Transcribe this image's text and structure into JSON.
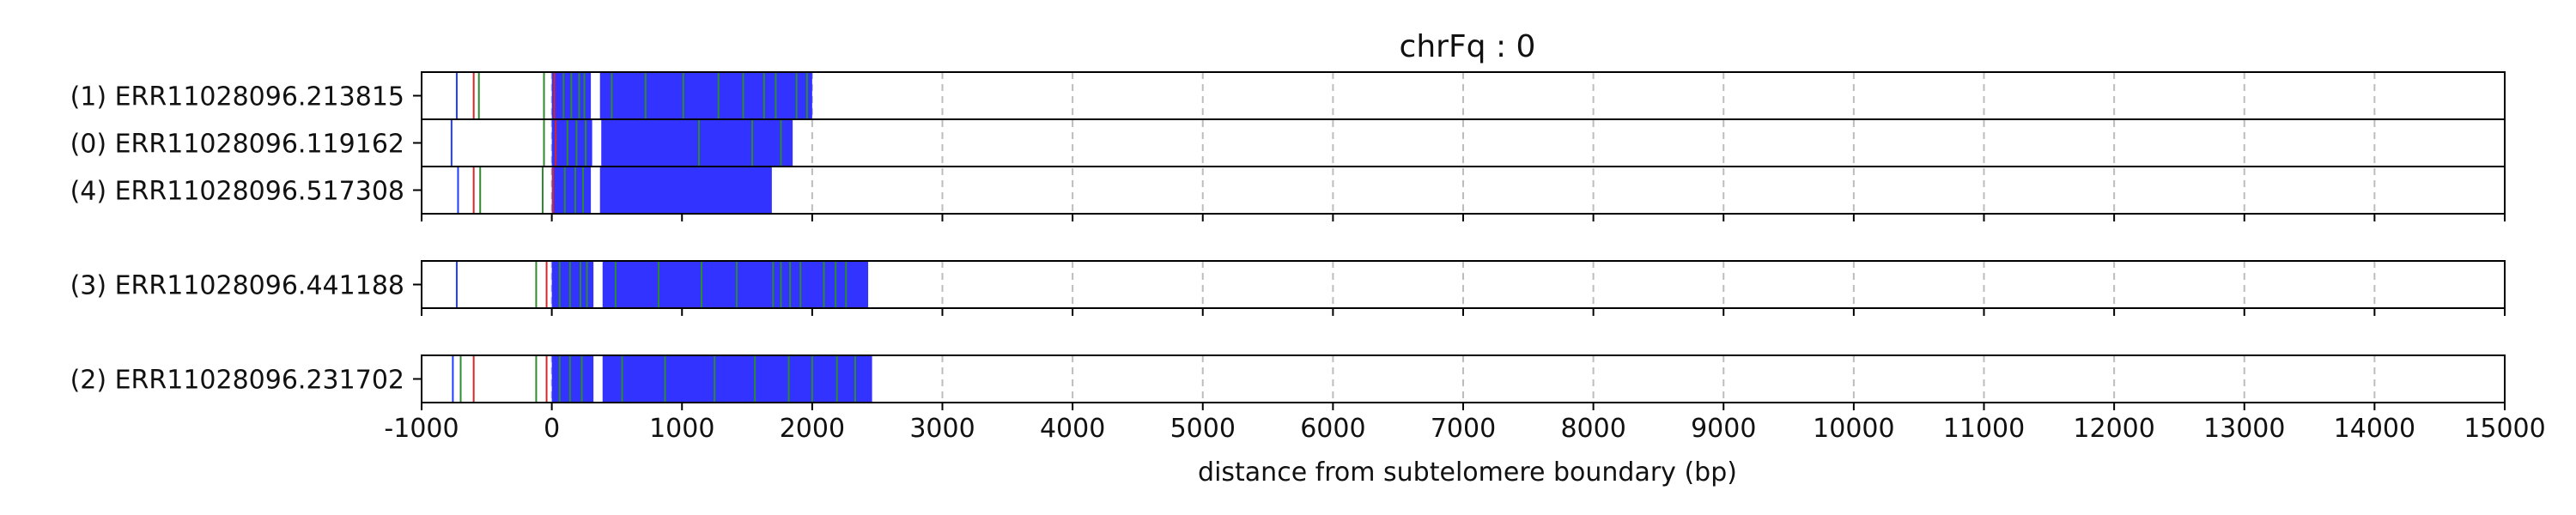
{
  "chart_data": {
    "type": "read-track",
    "title": "chrFq : 0",
    "xlabel": "distance from subtelomere boundary (bp)",
    "xlim": [
      -1000,
      15000
    ],
    "xticks": [
      -1000,
      0,
      1000,
      2000,
      3000,
      4000,
      5000,
      6000,
      7000,
      8000,
      9000,
      10000,
      11000,
      12000,
      13000,
      14000,
      15000
    ],
    "grid": "x-dashed",
    "colors": {
      "repeat": "#3333ff",
      "green": "#2e8b2e",
      "red": "#d62728",
      "blue": "#1f3cff",
      "gap": "#ffffff",
      "grid": "#bdbdbd",
      "frame": "#000000"
    },
    "groups": [
      {
        "reads": [
          {
            "label": "(1) ERR11028096.213815",
            "blocks": [
              [
                0,
                2000
              ]
            ],
            "gaps": [
              [
                300,
                370
              ]
            ],
            "marks": [
              {
                "x": -730,
                "c": "blue"
              },
              {
                "x": -600,
                "c": "red"
              },
              {
                "x": -560,
                "c": "green"
              },
              {
                "x": -60,
                "c": "green"
              },
              {
                "x": 20,
                "c": "red"
              },
              {
                "x": 90,
                "c": "green"
              },
              {
                "x": 150,
                "c": "green"
              },
              {
                "x": 210,
                "c": "green"
              },
              {
                "x": 250,
                "c": "green"
              },
              {
                "x": 460,
                "c": "green"
              },
              {
                "x": 720,
                "c": "green"
              },
              {
                "x": 1010,
                "c": "green"
              },
              {
                "x": 1280,
                "c": "green"
              },
              {
                "x": 1470,
                "c": "green"
              },
              {
                "x": 1630,
                "c": "green"
              },
              {
                "x": 1720,
                "c": "green"
              },
              {
                "x": 1880,
                "c": "green"
              },
              {
                "x": 1960,
                "c": "green"
              }
            ]
          },
          {
            "label": "(0) ERR11028096.119162",
            "blocks": [
              [
                0,
                1850
              ]
            ],
            "gaps": [
              [
                310,
                380
              ]
            ],
            "marks": [
              {
                "x": -770,
                "c": "blue"
              },
              {
                "x": -60,
                "c": "green"
              },
              {
                "x": 30,
                "c": "red"
              },
              {
                "x": 120,
                "c": "green"
              },
              {
                "x": 190,
                "c": "green"
              },
              {
                "x": 260,
                "c": "green"
              },
              {
                "x": 1130,
                "c": "green"
              },
              {
                "x": 1540,
                "c": "green"
              },
              {
                "x": 1760,
                "c": "green"
              }
            ]
          },
          {
            "label": "(4) ERR11028096.517308",
            "blocks": [
              [
                0,
                1690
              ]
            ],
            "gaps": [
              [
                300,
                370
              ]
            ],
            "marks": [
              {
                "x": -720,
                "c": "blue"
              },
              {
                "x": -600,
                "c": "red"
              },
              {
                "x": -550,
                "c": "green"
              },
              {
                "x": -70,
                "c": "green"
              },
              {
                "x": 10,
                "c": "red"
              },
              {
                "x": 100,
                "c": "green"
              },
              {
                "x": 180,
                "c": "green"
              },
              {
                "x": 240,
                "c": "green"
              }
            ]
          }
        ]
      },
      {
        "reads": [
          {
            "label": "(3) ERR11028096.441188",
            "blocks": [
              [
                0,
                2430
              ]
            ],
            "gaps": [
              [
                320,
                390
              ]
            ],
            "marks": [
              {
                "x": -730,
                "c": "blue"
              },
              {
                "x": -120,
                "c": "green"
              },
              {
                "x": -40,
                "c": "red"
              },
              {
                "x": 60,
                "c": "green"
              },
              {
                "x": 140,
                "c": "green"
              },
              {
                "x": 220,
                "c": "green"
              },
              {
                "x": 270,
                "c": "green"
              },
              {
                "x": 490,
                "c": "green"
              },
              {
                "x": 820,
                "c": "green"
              },
              {
                "x": 1150,
                "c": "green"
              },
              {
                "x": 1420,
                "c": "green"
              },
              {
                "x": 1700,
                "c": "green"
              },
              {
                "x": 1760,
                "c": "green"
              },
              {
                "x": 1830,
                "c": "green"
              },
              {
                "x": 1910,
                "c": "green"
              },
              {
                "x": 2090,
                "c": "green"
              },
              {
                "x": 2180,
                "c": "green"
              },
              {
                "x": 2260,
                "c": "green"
              }
            ]
          }
        ]
      },
      {
        "reads": [
          {
            "label": "(2) ERR11028096.231702",
            "blocks": [
              [
                0,
                2460
              ]
            ],
            "gaps": [
              [
                320,
                390
              ]
            ],
            "marks": [
              {
                "x": -760,
                "c": "blue"
              },
              {
                "x": -700,
                "c": "green"
              },
              {
                "x": -600,
                "c": "red"
              },
              {
                "x": -120,
                "c": "green"
              },
              {
                "x": -40,
                "c": "red"
              },
              {
                "x": 60,
                "c": "green"
              },
              {
                "x": 140,
                "c": "green"
              },
              {
                "x": 230,
                "c": "green"
              },
              {
                "x": 540,
                "c": "green"
              },
              {
                "x": 870,
                "c": "green"
              },
              {
                "x": 1250,
                "c": "green"
              },
              {
                "x": 1560,
                "c": "green"
              },
              {
                "x": 1820,
                "c": "green"
              },
              {
                "x": 2000,
                "c": "green"
              },
              {
                "x": 2190,
                "c": "green"
              },
              {
                "x": 2330,
                "c": "green"
              }
            ]
          }
        ]
      }
    ]
  }
}
